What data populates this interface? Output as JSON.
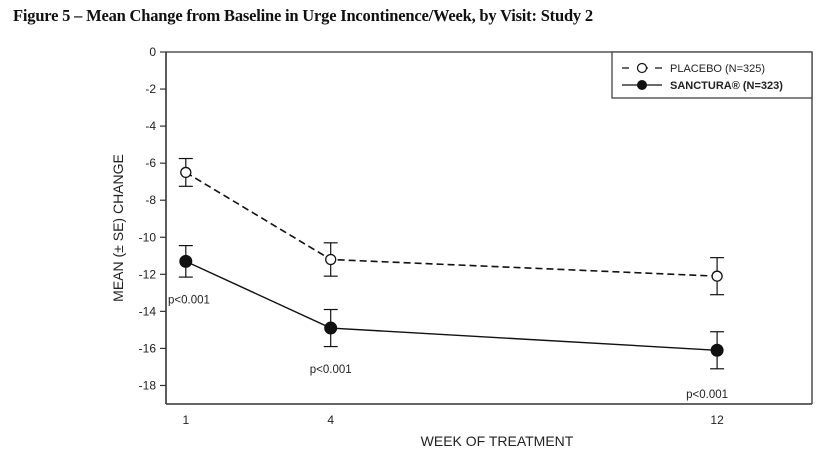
{
  "chart_data": {
    "type": "line",
    "title": "Figure 5 – Mean Change from Baseline in Urge Incontinence/Week, by Visit: Study 2",
    "xlabel": "WEEK OF TREATMENT",
    "ylabel": "MEAN (± SE) CHANGE",
    "x": [
      1,
      4,
      12
    ],
    "x_tick_labels": [
      "1",
      "4",
      "12"
    ],
    "xlim": [
      0.6,
      14.3
    ],
    "ylim": [
      -19,
      0
    ],
    "y_ticks": [
      0,
      -2,
      -4,
      -6,
      -8,
      -10,
      -12,
      -14,
      -16,
      -18
    ],
    "y_tick_labels": [
      "0",
      "-2",
      "-4",
      "-6",
      "-8",
      "-10",
      "-12",
      "-14",
      "-16",
      "-18"
    ],
    "grid": false,
    "legend_position": "top-right",
    "series": [
      {
        "name": "PLACEBO (N=325)",
        "line_style": "dashed",
        "marker": "open-circle",
        "values": [
          -6.5,
          -11.2,
          -12.1
        ],
        "se": [
          0.75,
          0.9,
          1.0
        ]
      },
      {
        "name": "SANCTURA® (N=323)",
        "line_style": "solid",
        "marker": "filled-circle",
        "values": [
          -11.3,
          -14.9,
          -16.1
        ],
        "se": [
          0.85,
          1.0,
          1.0
        ]
      }
    ],
    "annotations": [
      {
        "text": "p<0.001",
        "x": 1,
        "near_series": "SANCTURA® (N=323)"
      },
      {
        "text": "p<0.001",
        "x": 4,
        "near_series": "SANCTURA® (N=323)"
      },
      {
        "text": "p<0.001",
        "x": 12,
        "near_series": "SANCTURA® (N=323)"
      }
    ],
    "colors": {
      "line": "#111111",
      "axis": "#333333",
      "background": "#ffffff"
    }
  }
}
